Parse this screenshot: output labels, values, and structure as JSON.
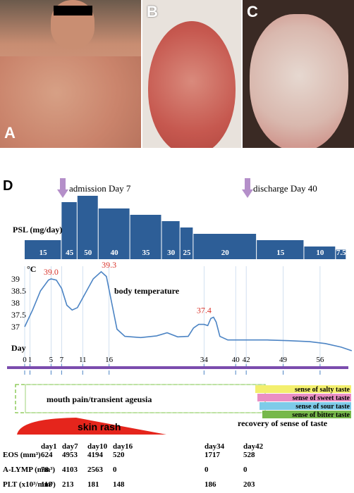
{
  "panels": {
    "a": {
      "letter": "A"
    },
    "b": {
      "letter": "B"
    },
    "c": {
      "letter": "C"
    },
    "d": {
      "letter": "D"
    }
  },
  "annotations": {
    "admission": "admission Day 7",
    "discharge": "discharge Day 40",
    "psl_label": "PSL (mg/day)",
    "temp_unit": "°C",
    "temp_label": "body temperature",
    "day_label": "Day",
    "mouth_pain": "mouth pain/transient ageusia",
    "skin_rash": "skin rash",
    "recovery": "recovery of sense of taste"
  },
  "chart_data": [
    {
      "type": "bar",
      "ylabel": "PSL (mg/day)",
      "x_axis": "Day",
      "segments": [
        {
          "from": 0,
          "to": 7,
          "value": 15
        },
        {
          "from": 7,
          "to": 10,
          "value": 45
        },
        {
          "from": 10,
          "to": 14,
          "value": 50
        },
        {
          "from": 14,
          "to": 20,
          "value": 40
        },
        {
          "from": 20,
          "to": 26,
          "value": 35
        },
        {
          "from": 26,
          "to": 29.5,
          "value": 30
        },
        {
          "from": 29.5,
          "to": 32,
          "value": 25
        },
        {
          "from": 32,
          "to": 44,
          "value": 20
        },
        {
          "from": 44,
          "to": 53,
          "value": 15
        },
        {
          "from": 53,
          "to": 59,
          "value": 10
        },
        {
          "from": 59,
          "to": 61,
          "value": 7.5
        }
      ]
    },
    {
      "type": "line",
      "ylabel": "°C",
      "series_label": "body temperature",
      "y_ticks": [
        "39",
        "38.5",
        "38",
        "37.5",
        "37"
      ],
      "ylim": [
        36.3,
        39.4
      ],
      "points": [
        [
          0,
          37.0
        ],
        [
          1.5,
          37.7
        ],
        [
          3,
          38.5
        ],
        [
          4.5,
          38.95
        ],
        [
          5,
          39.0
        ],
        [
          6,
          38.95
        ],
        [
          7,
          38.6
        ],
        [
          8,
          37.9
        ],
        [
          9,
          37.7
        ],
        [
          10,
          37.8
        ],
        [
          11.5,
          38.4
        ],
        [
          13,
          39.0
        ],
        [
          14.5,
          39.3
        ],
        [
          15.5,
          39.1
        ],
        [
          16.5,
          38.0
        ],
        [
          17.5,
          36.9
        ],
        [
          19,
          36.6
        ],
        [
          22,
          36.55
        ],
        [
          25,
          36.62
        ],
        [
          27,
          36.75
        ],
        [
          29,
          36.58
        ],
        [
          31,
          36.6
        ],
        [
          32,
          36.95
        ],
        [
          33,
          37.1
        ],
        [
          34,
          37.1
        ],
        [
          34.7,
          37.05
        ],
        [
          35.3,
          37.35
        ],
        [
          35.8,
          37.4
        ],
        [
          36.3,
          37.2
        ],
        [
          37,
          36.6
        ],
        [
          38.5,
          36.45
        ],
        [
          42,
          36.45
        ],
        [
          46,
          36.45
        ],
        [
          50,
          36.42
        ],
        [
          54,
          36.38
        ],
        [
          57,
          36.3
        ],
        [
          60,
          36.15
        ],
        [
          62,
          36.0
        ]
      ],
      "peaks": [
        {
          "day": 5,
          "value": 39.0,
          "label": "39.0"
        },
        {
          "day": 16,
          "value": 39.3,
          "label": "39.3"
        },
        {
          "day": 34,
          "value": 37.4,
          "label": "37.4"
        }
      ]
    }
  ],
  "day_ticks": [
    "0",
    "1",
    "5",
    "7",
    "11",
    "16",
    "34",
    "40",
    "42",
    "49",
    "56"
  ],
  "taste_legend": [
    {
      "label": "sense of salty taste",
      "color": "#f3ef6e"
    },
    {
      "label": "sense of sweet taste",
      "color": "#ea8fc4"
    },
    {
      "label": "sense of sour taste",
      "color": "#7ecbe9"
    },
    {
      "label": "sense of bitter taste",
      "color": "#77b84a"
    }
  ],
  "lab_table": {
    "columns": [
      "day1",
      "day7",
      "day10",
      "day16",
      "day34",
      "day42"
    ],
    "rows": [
      {
        "label": "EOS (mm³)",
        "values": [
          "624",
          "4953",
          "4194",
          "520",
          "1717",
          "528"
        ]
      },
      {
        "label": "A-LYMP (mm³)",
        "values": [
          "78",
          "4103",
          "2563",
          "0",
          "0",
          "0"
        ]
      },
      {
        "label": "PLT (x10³/mm³)",
        "values": [
          "118",
          "213",
          "181",
          "148",
          "186",
          "203"
        ]
      }
    ]
  },
  "colors": {
    "psl_bar": "#2d5e97",
    "temp_line": "#4c84c4",
    "axis_bar": "#7b4cae",
    "peak_label": "#d9342b",
    "rash": "#e5251c",
    "arrow": "#b48fc9",
    "dashed_box": "#7dc242"
  }
}
